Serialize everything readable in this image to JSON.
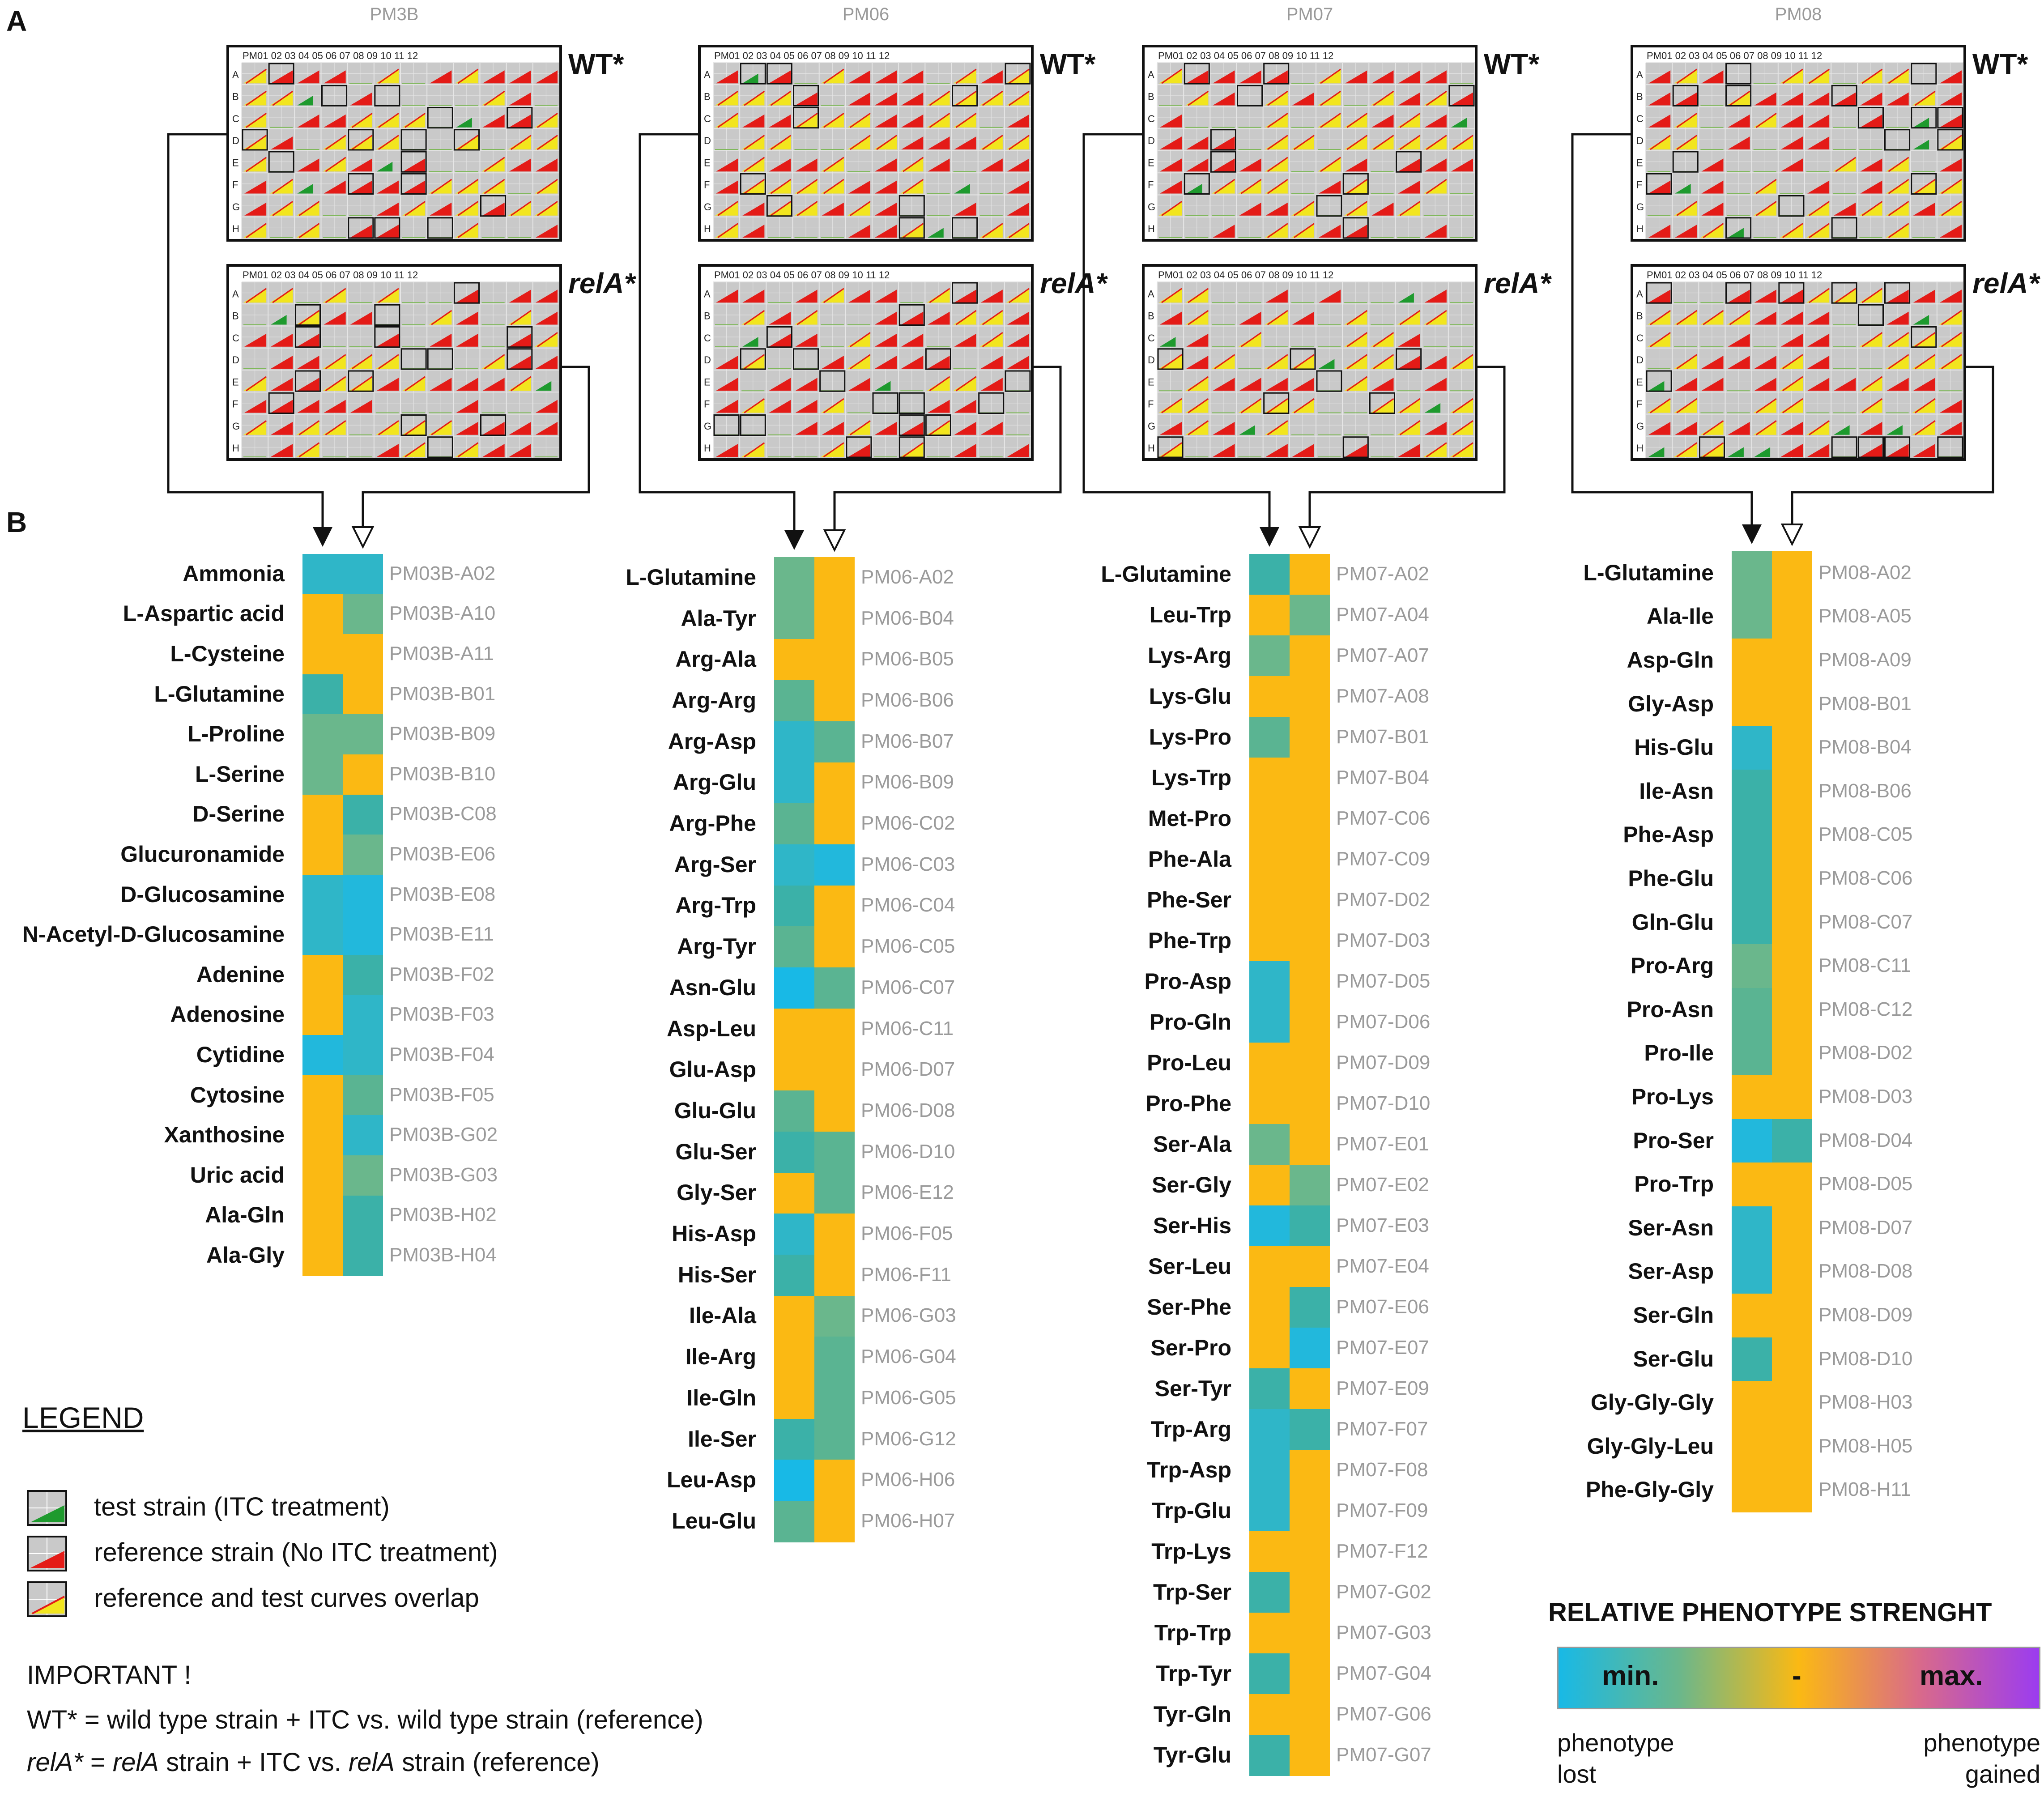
{
  "panels": {
    "a": "A",
    "b": "B"
  },
  "strains": {
    "wt": "WT*",
    "rela": "relA*"
  },
  "plate_header": "PM01 02 03 04 05 06 07 08 09 10 11 12",
  "plate_rows": [
    "A",
    "B",
    "C",
    "D",
    "E",
    "F",
    "G",
    "H"
  ],
  "plates": [
    {
      "title": "PM3B",
      "heatmap": [
        {
          "label": "Ammonia",
          "well": "PM03B-A02",
          "wt": "#2fb6c8",
          "rela": "#2fb6c8"
        },
        {
          "label": "L-Aspartic acid",
          "well": "PM03B-A10",
          "wt": "#fbb913",
          "rela": "#6ab78c"
        },
        {
          "label": "L-Cysteine",
          "well": "PM03B-A11",
          "wt": "#fbb913",
          "rela": "#fbb913"
        },
        {
          "label": "L-Glutamine",
          "well": "PM03B-B01",
          "wt": "#3bb1a8",
          "rela": "#fbb913"
        },
        {
          "label": "L-Proline",
          "well": "PM03B-B09",
          "wt": "#6ab78c",
          "rela": "#6ab78c"
        },
        {
          "label": "L-Serine",
          "well": "PM03B-B10",
          "wt": "#6ab78c",
          "rela": "#fbb913"
        },
        {
          "label": "D-Serine",
          "well": "PM03B-C08",
          "wt": "#fbb913",
          "rela": "#3bb1a8"
        },
        {
          "label": "Glucuronamide",
          "well": "PM03B-E06",
          "wt": "#fbb913",
          "rela": "#6ab78c"
        },
        {
          "label": "D-Glucosamine",
          "well": "PM03B-E08",
          "wt": "#2fb6c8",
          "rela": "#22b8dc"
        },
        {
          "label": "N-Acetyl-D-Glucosamine",
          "well": "PM03B-E11",
          "wt": "#2fb6c8",
          "rela": "#22b8dc"
        },
        {
          "label": "Adenine",
          "well": "PM03B-F02",
          "wt": "#fbb913",
          "rela": "#3bb1a8"
        },
        {
          "label": "Adenosine",
          "well": "PM03B-F03",
          "wt": "#fbb913",
          "rela": "#2fb6c8"
        },
        {
          "label": "Cytidine",
          "well": "PM03B-F04",
          "wt": "#22b8dc",
          "rela": "#2fb6c8"
        },
        {
          "label": "Cytosine",
          "well": "PM03B-F05",
          "wt": "#fbb913",
          "rela": "#5ab492"
        },
        {
          "label": "Xanthosine",
          "well": "PM03B-G02",
          "wt": "#fbb913",
          "rela": "#2fb6c8"
        },
        {
          "label": "Uric acid",
          "well": "PM03B-G03",
          "wt": "#fbb913",
          "rela": "#6ab78c"
        },
        {
          "label": "Ala-Gln",
          "well": "PM03B-H02",
          "wt": "#fbb913",
          "rela": "#3bb1a8"
        },
        {
          "label": "Ala-Gly",
          "well": "PM03B-H04",
          "wt": "#fbb913",
          "rela": "#3bb1a8"
        }
      ]
    },
    {
      "title": "PM06",
      "heatmap": [
        {
          "label": "L-Glutamine",
          "well": "PM06-A02",
          "wt": "#6ab78c",
          "rela": "#fbb913"
        },
        {
          "label": "Ala-Tyr",
          "well": "PM06-B04",
          "wt": "#6ab78c",
          "rela": "#fbb913"
        },
        {
          "label": "Arg-Ala",
          "well": "PM06-B05",
          "wt": "#fbb913",
          "rela": "#fbb913"
        },
        {
          "label": "Arg-Arg",
          "well": "PM06-B06",
          "wt": "#5ab492",
          "rela": "#fbb913"
        },
        {
          "label": "Arg-Asp",
          "well": "PM06-B07",
          "wt": "#2fb6c8",
          "rela": "#5ab492"
        },
        {
          "label": "Arg-Glu",
          "well": "PM06-B09",
          "wt": "#2fb6c8",
          "rela": "#fbb913"
        },
        {
          "label": "Arg-Phe",
          "well": "PM06-C02",
          "wt": "#5ab492",
          "rela": "#fbb913"
        },
        {
          "label": "Arg-Ser",
          "well": "PM06-C03",
          "wt": "#2fb6c8",
          "rela": "#22b8dc"
        },
        {
          "label": "Arg-Trp",
          "well": "PM06-C04",
          "wt": "#3bb1a8",
          "rela": "#fbb913"
        },
        {
          "label": "Arg-Tyr",
          "well": "PM06-C05",
          "wt": "#5ab492",
          "rela": "#fbb913"
        },
        {
          "label": "Asn-Glu",
          "well": "PM06-C07",
          "wt": "#18b9e6",
          "rela": "#5ab492"
        },
        {
          "label": "Asp-Leu",
          "well": "PM06-C11",
          "wt": "#fbb913",
          "rela": "#fbb913"
        },
        {
          "label": "Glu-Asp",
          "well": "PM06-D07",
          "wt": "#fbb913",
          "rela": "#fbb913"
        },
        {
          "label": "Glu-Glu",
          "well": "PM06-D08",
          "wt": "#5ab492",
          "rela": "#fbb913"
        },
        {
          "label": "Glu-Ser",
          "well": "PM06-D10",
          "wt": "#3bb1a8",
          "rela": "#5ab492"
        },
        {
          "label": "Gly-Ser",
          "well": "PM06-E12",
          "wt": "#fbb913",
          "rela": "#5ab492"
        },
        {
          "label": "His-Asp",
          "well": "PM06-F05",
          "wt": "#2fb6c8",
          "rela": "#fbb913"
        },
        {
          "label": "His-Ser",
          "well": "PM06-F11",
          "wt": "#3bb1a8",
          "rela": "#fbb913"
        },
        {
          "label": "Ile-Ala",
          "well": "PM06-G03",
          "wt": "#fbb913",
          "rela": "#6ab78c"
        },
        {
          "label": "Ile-Arg",
          "well": "PM06-G04",
          "wt": "#fbb913",
          "rela": "#5ab492"
        },
        {
          "label": "Ile-Gln",
          "well": "PM06-G05",
          "wt": "#fbb913",
          "rela": "#5ab492"
        },
        {
          "label": "Ile-Ser",
          "well": "PM06-G12",
          "wt": "#3bb1a8",
          "rela": "#5ab492"
        },
        {
          "label": "Leu-Asp",
          "well": "PM06-H06",
          "wt": "#18b9e6",
          "rela": "#fbb913"
        },
        {
          "label": "Leu-Glu",
          "well": "PM06-H07",
          "wt": "#5ab492",
          "rela": "#fbb913"
        }
      ]
    },
    {
      "title": "PM07",
      "heatmap": [
        {
          "label": "L-Glutamine",
          "well": "PM07-A02",
          "wt": "#3bb1a8",
          "rela": "#fbb913"
        },
        {
          "label": "Leu-Trp",
          "well": "PM07-A04",
          "wt": "#fbb913",
          "rela": "#6ab78c"
        },
        {
          "label": "Lys-Arg",
          "well": "PM07-A07",
          "wt": "#6ab78c",
          "rela": "#fbb913"
        },
        {
          "label": "Lys-Glu",
          "well": "PM07-A08",
          "wt": "#fbb913",
          "rela": "#fbb913"
        },
        {
          "label": "Lys-Pro",
          "well": "PM07-B01",
          "wt": "#5ab492",
          "rela": "#fbb913"
        },
        {
          "label": "Lys-Trp",
          "well": "PM07-B04",
          "wt": "#fbb913",
          "rela": "#fbb913"
        },
        {
          "label": "Met-Pro",
          "well": "PM07-C06",
          "wt": "#fbb913",
          "rela": "#fbb913"
        },
        {
          "label": "Phe-Ala",
          "well": "PM07-C09",
          "wt": "#fbb913",
          "rela": "#fbb913"
        },
        {
          "label": "Phe-Ser",
          "well": "PM07-D02",
          "wt": "#fbb913",
          "rela": "#fbb913"
        },
        {
          "label": "Phe-Trp",
          "well": "PM07-D03",
          "wt": "#fbb913",
          "rela": "#fbb913"
        },
        {
          "label": "Pro-Asp",
          "well": "PM07-D05",
          "wt": "#2fb6c8",
          "rela": "#fbb913"
        },
        {
          "label": "Pro-Gln",
          "well": "PM07-D06",
          "wt": "#2fb6c8",
          "rela": "#fbb913"
        },
        {
          "label": "Pro-Leu",
          "well": "PM07-D09",
          "wt": "#fbb913",
          "rela": "#fbb913"
        },
        {
          "label": "Pro-Phe",
          "well": "PM07-D10",
          "wt": "#fbb913",
          "rela": "#fbb913"
        },
        {
          "label": "Ser-Ala",
          "well": "PM07-E01",
          "wt": "#6ab78c",
          "rela": "#fbb913"
        },
        {
          "label": "Ser-Gly",
          "well": "PM07-E02",
          "wt": "#fbb913",
          "rela": "#6ab78c"
        },
        {
          "label": "Ser-His",
          "well": "PM07-E03",
          "wt": "#22b8dc",
          "rela": "#3bb1a8"
        },
        {
          "label": "Ser-Leu",
          "well": "PM07-E04",
          "wt": "#fbb913",
          "rela": "#fbb913"
        },
        {
          "label": "Ser-Phe",
          "well": "PM07-E06",
          "wt": "#fbb913",
          "rela": "#3bb1a8"
        },
        {
          "label": "Ser-Pro",
          "well": "PM07-E07",
          "wt": "#fbb913",
          "rela": "#22b8dc"
        },
        {
          "label": "Ser-Tyr",
          "well": "PM07-E09",
          "wt": "#3bb1a8",
          "rela": "#fbb913"
        },
        {
          "label": "Trp-Arg",
          "well": "PM07-F07",
          "wt": "#2fb6c8",
          "rela": "#3bb1a8"
        },
        {
          "label": "Trp-Asp",
          "well": "PM07-F08",
          "wt": "#2fb6c8",
          "rela": "#fbb913"
        },
        {
          "label": "Trp-Glu",
          "well": "PM07-F09",
          "wt": "#2fb6c8",
          "rela": "#fbb913"
        },
        {
          "label": "Trp-Lys",
          "well": "PM07-F12",
          "wt": "#fbb913",
          "rela": "#fbb913"
        },
        {
          "label": "Trp-Ser",
          "well": "PM07-G02",
          "wt": "#3bb1a8",
          "rela": "#fbb913"
        },
        {
          "label": "Trp-Trp",
          "well": "PM07-G03",
          "wt": "#fbb913",
          "rela": "#fbb913"
        },
        {
          "label": "Trp-Tyr",
          "well": "PM07-G04",
          "wt": "#3bb1a8",
          "rela": "#fbb913"
        },
        {
          "label": "Tyr-Gln",
          "well": "PM07-G06",
          "wt": "#fbb913",
          "rela": "#fbb913"
        },
        {
          "label": "Tyr-Glu",
          "well": "PM07-G07",
          "wt": "#3bb1a8",
          "rela": "#fbb913"
        }
      ]
    },
    {
      "title": "PM08",
      "heatmap": [
        {
          "label": "L-Glutamine",
          "well": "PM08-A02",
          "wt": "#6ab78c",
          "rela": "#fbb913"
        },
        {
          "label": "Ala-Ile",
          "well": "PM08-A05",
          "wt": "#6ab78c",
          "rela": "#fbb913"
        },
        {
          "label": "Asp-Gln",
          "well": "PM08-A09",
          "wt": "#fbb913",
          "rela": "#fbb913"
        },
        {
          "label": "Gly-Asp",
          "well": "PM08-B01",
          "wt": "#fbb913",
          "rela": "#fbb913"
        },
        {
          "label": "His-Glu",
          "well": "PM08-B04",
          "wt": "#2fb6c8",
          "rela": "#fbb913"
        },
        {
          "label": "Ile-Asn",
          "well": "PM08-B06",
          "wt": "#3bb1a8",
          "rela": "#fbb913"
        },
        {
          "label": "Phe-Asp",
          "well": "PM08-C05",
          "wt": "#3bb1a8",
          "rela": "#fbb913"
        },
        {
          "label": "Phe-Glu",
          "well": "PM08-C06",
          "wt": "#3bb1a8",
          "rela": "#fbb913"
        },
        {
          "label": "Gln-Glu",
          "well": "PM08-C07",
          "wt": "#3bb1a8",
          "rela": "#fbb913"
        },
        {
          "label": "Pro-Arg",
          "well": "PM08-C11",
          "wt": "#6ab78c",
          "rela": "#fbb913"
        },
        {
          "label": "Pro-Asn",
          "well": "PM08-C12",
          "wt": "#5ab492",
          "rela": "#fbb913"
        },
        {
          "label": "Pro-Ile",
          "well": "PM08-D02",
          "wt": "#5ab492",
          "rela": "#fbb913"
        },
        {
          "label": "Pro-Lys",
          "well": "PM08-D03",
          "wt": "#fbb913",
          "rela": "#fbb913"
        },
        {
          "label": "Pro-Ser",
          "well": "PM08-D04",
          "wt": "#22b8dc",
          "rela": "#3bb1a8"
        },
        {
          "label": "Pro-Trp",
          "well": "PM08-D05",
          "wt": "#fbb913",
          "rela": "#fbb913"
        },
        {
          "label": "Ser-Asn",
          "well": "PM08-D07",
          "wt": "#2fb6c8",
          "rela": "#fbb913"
        },
        {
          "label": "Ser-Asp",
          "well": "PM08-D08",
          "wt": "#2fb6c8",
          "rela": "#fbb913"
        },
        {
          "label": "Ser-Gln",
          "well": "PM08-D09",
          "wt": "#fbb913",
          "rela": "#fbb913"
        },
        {
          "label": "Ser-Glu",
          "well": "PM08-D10",
          "wt": "#3bb1a8",
          "rela": "#fbb913"
        },
        {
          "label": "Gly-Gly-Gly",
          "well": "PM08-H03",
          "wt": "#fbb913",
          "rela": "#fbb913"
        },
        {
          "label": "Gly-Gly-Leu",
          "well": "PM08-H05",
          "wt": "#fbb913",
          "rela": "#fbb913"
        },
        {
          "label": "Phe-Gly-Gly",
          "well": "PM08-H11",
          "wt": "#fbb913",
          "rela": "#fbb913"
        }
      ]
    }
  ],
  "legend": {
    "title": "LEGEND",
    "items": [
      {
        "text": "test strain (ITC treatment)",
        "color": "#1e9a2e"
      },
      {
        "text": "reference strain (No ITC treatment)",
        "color": "#e41b17"
      },
      {
        "text": "reference and test curves overlap",
        "color": "#f2e51e"
      }
    ],
    "important_title": "IMPORTANT !",
    "note_wt": "WT* = wild  type strain + ITC vs. wild type strain (reference)",
    "note_rela_a": "relA*",
    "note_rela_b": " = ",
    "note_rela_c": "relA",
    "note_rela_d": " strain + ITC vs. ",
    "note_rela_e": "relA",
    "note_rela_f": " strain (reference)"
  },
  "scale": {
    "title": "RELATIVE PHENOTYPE STRENGHT",
    "min_label": "min.",
    "mid_label": "-",
    "max_label": "max.",
    "left_note_1": "phenotype",
    "left_note_2": "lost",
    "right_note_1": "phenotype",
    "right_note_2": "gained",
    "colors": [
      "#18b9e6",
      "#6ab78c",
      "#fbb913",
      "#d96a8a",
      "#9b3cf0"
    ]
  },
  "colors": {
    "plate_bg": "#c9c9c9",
    "grid": "#ffffff",
    "red": "#e41b17",
    "yellow": "#f2e51e",
    "green": "#1e9a2e"
  }
}
